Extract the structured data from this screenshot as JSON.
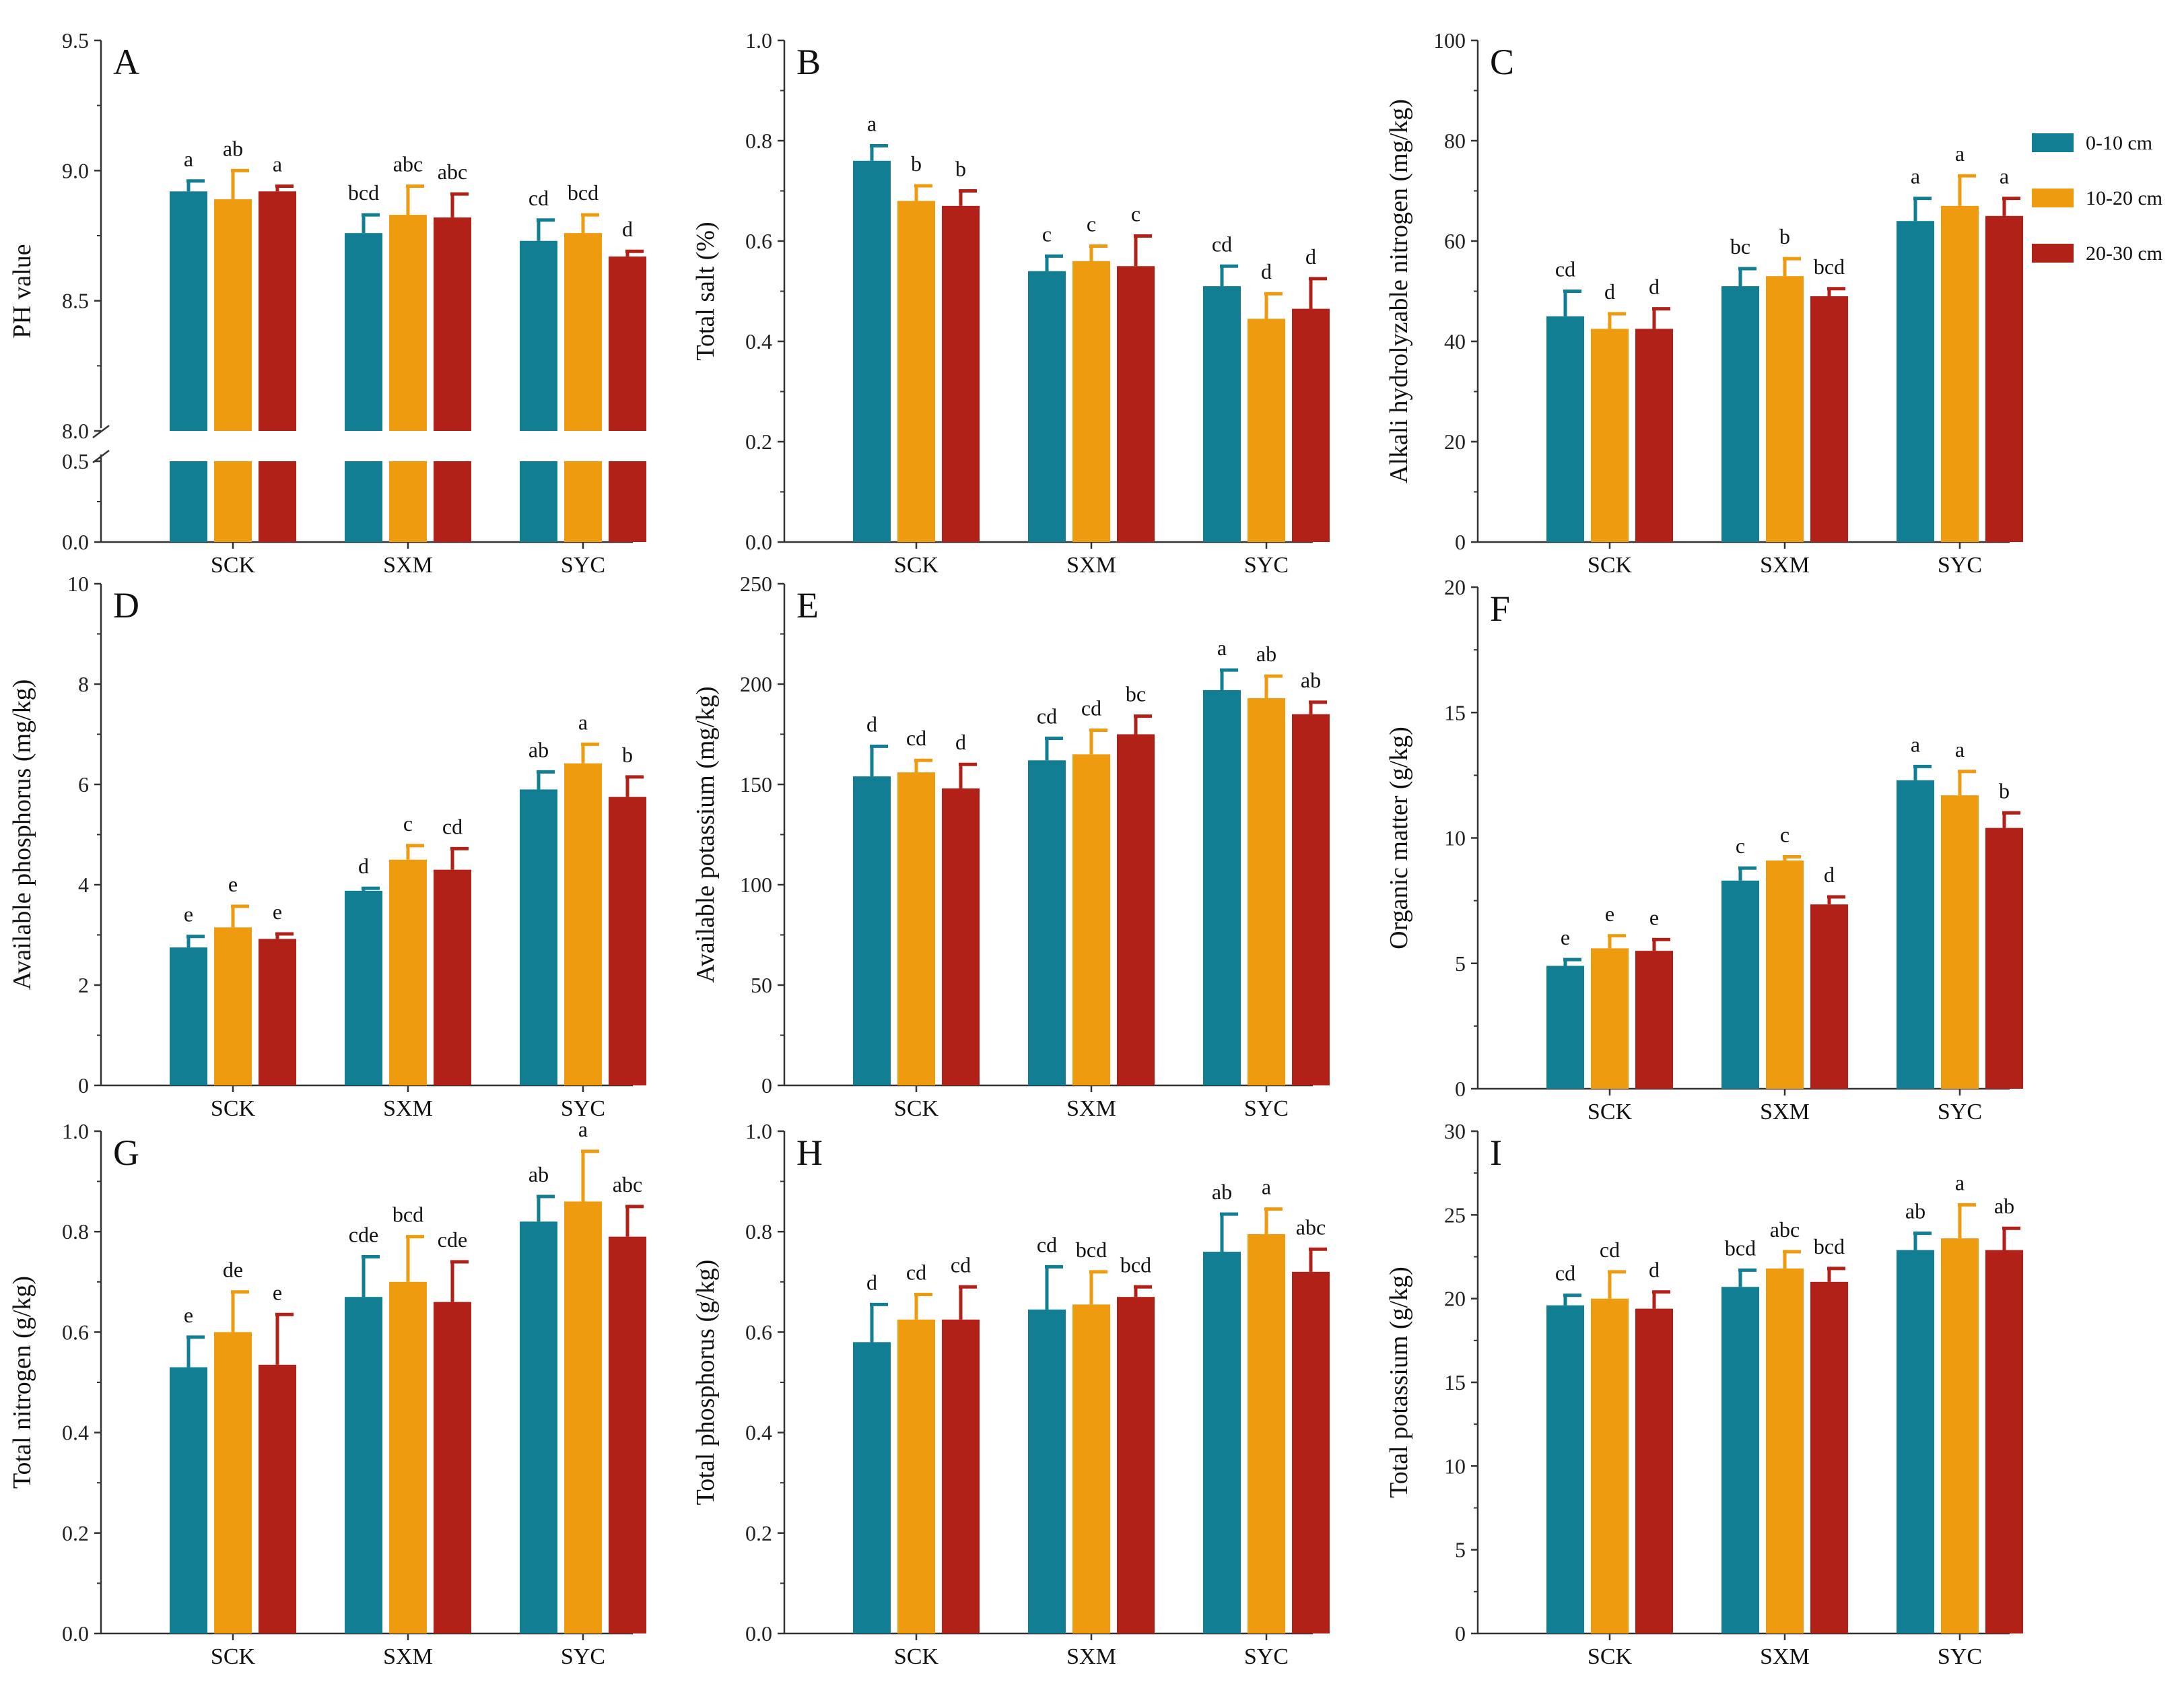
{
  "colors": {
    "s0": "#127e93",
    "s1": "#ee9b0f",
    "s2": "#b12118",
    "axis": "#333333"
  },
  "legend": [
    {
      "label": "0-10 cm",
      "color": "#127e93"
    },
    {
      "label": "10-20 cm",
      "color": "#ee9b0f"
    },
    {
      "label": "20-30 cm",
      "color": "#b12118"
    }
  ],
  "chart_data": [
    {
      "panel": "A",
      "type": "bar",
      "ylabel": "PH value",
      "categories": [
        "SCK",
        "SXM",
        "SYC"
      ],
      "broken_axis": true,
      "ylim_lower": [
        0,
        0.5
      ],
      "lower_ticks": [
        "0.0",
        "0.5"
      ],
      "ylim": [
        8.0,
        9.5
      ],
      "ticks": [
        "8.0",
        "8.5",
        "9.0",
        "9.5"
      ],
      "series": [
        {
          "name": "0-10 cm",
          "values": [
            8.92,
            8.76,
            8.73
          ],
          "errors": [
            0.04,
            0.07,
            0.08
          ],
          "labels": [
            "a",
            "bcd",
            "cd"
          ]
        },
        {
          "name": "10-20 cm",
          "values": [
            8.89,
            8.83,
            8.76
          ],
          "errors": [
            0.11,
            0.11,
            0.07
          ],
          "labels": [
            "ab",
            "abc",
            "bcd"
          ]
        },
        {
          "name": "20-30 cm",
          "values": [
            8.92,
            8.82,
            8.67
          ],
          "errors": [
            0.02,
            0.09,
            0.02
          ],
          "labels": [
            "a",
            "abc",
            "d"
          ]
        }
      ]
    },
    {
      "panel": "B",
      "type": "bar",
      "ylabel": "Total salt (%)",
      "categories": [
        "SCK",
        "SXM",
        "SYC"
      ],
      "ylim": [
        0,
        1.0
      ],
      "ticks": [
        "0.0",
        "0.2",
        "0.4",
        "0.6",
        "0.8",
        "1.0"
      ],
      "series": [
        {
          "name": "0-10 cm",
          "values": [
            0.76,
            0.54,
            0.51
          ],
          "errors": [
            0.03,
            0.03,
            0.04
          ],
          "labels": [
            "a",
            "c",
            "cd"
          ]
        },
        {
          "name": "10-20 cm",
          "values": [
            0.68,
            0.56,
            0.445
          ],
          "errors": [
            0.03,
            0.03,
            0.05
          ],
          "labels": [
            "b",
            "c",
            "d"
          ]
        },
        {
          "name": "20-30 cm",
          "values": [
            0.67,
            0.55,
            0.465
          ],
          "errors": [
            0.03,
            0.06,
            0.06
          ],
          "labels": [
            "b",
            "c",
            "d"
          ]
        }
      ]
    },
    {
      "panel": "C",
      "type": "bar",
      "ylabel": "Alkali hydrolyzable nitrogen (mg/kg)",
      "categories": [
        "SCK",
        "SXM",
        "SYC"
      ],
      "ylim": [
        0,
        100
      ],
      "ticks": [
        "0",
        "20",
        "40",
        "60",
        "80",
        "100"
      ],
      "series": [
        {
          "name": "0-10 cm",
          "values": [
            45,
            51,
            64
          ],
          "errors": [
            5,
            3.5,
            4.5
          ],
          "labels": [
            "cd",
            "bc",
            "a"
          ]
        },
        {
          "name": "10-20 cm",
          "values": [
            42.5,
            53,
            67
          ],
          "errors": [
            3,
            3.5,
            6
          ],
          "labels": [
            "d",
            "b",
            "a"
          ]
        },
        {
          "name": "20-30 cm",
          "values": [
            42.5,
            49,
            65
          ],
          "errors": [
            4,
            1.5,
            3.5
          ],
          "labels": [
            "d",
            "bcd",
            "a"
          ]
        }
      ]
    },
    {
      "panel": "D",
      "type": "bar",
      "ylabel": "Available phosphorus (mg/kg)",
      "categories": [
        "SCK",
        "SXM",
        "SYC"
      ],
      "ylim": [
        0,
        10
      ],
      "ticks": [
        "0",
        "2",
        "4",
        "6",
        "8",
        "10"
      ],
      "series": [
        {
          "name": "0-10 cm",
          "values": [
            2.75,
            3.88,
            5.9
          ],
          "errors": [
            0.22,
            0.05,
            0.35
          ],
          "labels": [
            "e",
            "d",
            "ab"
          ]
        },
        {
          "name": "10-20 cm",
          "values": [
            3.15,
            4.5,
            6.42
          ],
          "errors": [
            0.42,
            0.28,
            0.38
          ],
          "labels": [
            "e",
            "c",
            "a"
          ]
        },
        {
          "name": "20-30 cm",
          "values": [
            2.92,
            4.3,
            5.75
          ],
          "errors": [
            0.1,
            0.42,
            0.4
          ],
          "labels": [
            "e",
            "cd",
            "b"
          ]
        }
      ]
    },
    {
      "panel": "E",
      "type": "bar",
      "ylabel": "Available potassium (mg/kg)",
      "categories": [
        "SCK",
        "SXM",
        "SYC"
      ],
      "ylim": [
        0,
        250
      ],
      "ticks": [
        "0",
        "50",
        "100",
        "150",
        "200",
        "250"
      ],
      "series": [
        {
          "name": "0-10 cm",
          "values": [
            154,
            162,
            197
          ],
          "errors": [
            15,
            11,
            10
          ],
          "labels": [
            "d",
            "cd",
            "a"
          ]
        },
        {
          "name": "10-20 cm",
          "values": [
            156,
            165,
            193
          ],
          "errors": [
            6,
            12,
            11
          ],
          "labels": [
            "cd",
            "cd",
            "ab"
          ]
        },
        {
          "name": "20-30 cm",
          "values": [
            148,
            175,
            185
          ],
          "errors": [
            12,
            9,
            6
          ],
          "labels": [
            "d",
            "bc",
            "ab"
          ]
        }
      ]
    },
    {
      "panel": "F",
      "type": "bar",
      "ylabel": "Organic matter (g/kg)",
      "categories": [
        "SCK",
        "SXM",
        "SYC"
      ],
      "ylim": [
        0,
        20
      ],
      "ticks": [
        "0",
        "5",
        "10",
        "15",
        "20"
      ],
      "series": [
        {
          "name": "0-10 cm",
          "values": [
            4.9,
            8.3,
            12.3
          ],
          "errors": [
            0.25,
            0.5,
            0.55
          ],
          "labels": [
            "e",
            "c",
            "a"
          ]
        },
        {
          "name": "10-20 cm",
          "values": [
            5.6,
            9.1,
            11.7
          ],
          "errors": [
            0.5,
            0.15,
            0.95
          ],
          "labels": [
            "e",
            "c",
            "a"
          ]
        },
        {
          "name": "20-30 cm",
          "values": [
            5.5,
            7.35,
            10.4
          ],
          "errors": [
            0.45,
            0.3,
            0.6
          ],
          "labels": [
            "e",
            "d",
            "b"
          ]
        }
      ]
    },
    {
      "panel": "G",
      "type": "bar",
      "ylabel": "Total nitrogen (g/kg)",
      "categories": [
        "SCK",
        "SXM",
        "SYC"
      ],
      "ylim": [
        0,
        1.0
      ],
      "ticks": [
        "0.0",
        "0.2",
        "0.4",
        "0.6",
        "0.8",
        "1.0"
      ],
      "series": [
        {
          "name": "0-10 cm",
          "values": [
            0.53,
            0.67,
            0.82
          ],
          "errors": [
            0.06,
            0.08,
            0.05
          ],
          "labels": [
            "e",
            "cde",
            "ab"
          ]
        },
        {
          "name": "10-20 cm",
          "values": [
            0.6,
            0.7,
            0.86
          ],
          "errors": [
            0.08,
            0.09,
            0.1
          ],
          "labels": [
            "de",
            "bcd",
            "a"
          ]
        },
        {
          "name": "20-30 cm",
          "values": [
            0.535,
            0.66,
            0.79
          ],
          "errors": [
            0.1,
            0.08,
            0.06
          ],
          "labels": [
            "e",
            "cde",
            "abc"
          ]
        }
      ]
    },
    {
      "panel": "H",
      "type": "bar",
      "ylabel": "Total phosphorus (g/kg)",
      "categories": [
        "SCK",
        "SXM",
        "SYC"
      ],
      "ylim": [
        0,
        1.0
      ],
      "ticks": [
        "0.0",
        "0.2",
        "0.4",
        "0.6",
        "0.8",
        "1.0"
      ],
      "series": [
        {
          "name": "0-10 cm",
          "values": [
            0.58,
            0.645,
            0.76
          ],
          "errors": [
            0.075,
            0.085,
            0.075
          ],
          "labels": [
            "d",
            "cd",
            "ab"
          ]
        },
        {
          "name": "10-20 cm",
          "values": [
            0.625,
            0.655,
            0.795
          ],
          "errors": [
            0.05,
            0.065,
            0.05
          ],
          "labels": [
            "cd",
            "bcd",
            "a"
          ]
        },
        {
          "name": "20-30 cm",
          "values": [
            0.625,
            0.67,
            0.72
          ],
          "errors": [
            0.065,
            0.02,
            0.045
          ],
          "labels": [
            "cd",
            "bcd",
            "abc"
          ]
        }
      ]
    },
    {
      "panel": "I",
      "type": "bar",
      "ylabel": "Total potassium (g/kg)",
      "categories": [
        "SCK",
        "SXM",
        "SYC"
      ],
      "ylim": [
        0,
        30
      ],
      "ticks": [
        "0",
        "5",
        "10",
        "15",
        "20",
        "25",
        "30"
      ],
      "series": [
        {
          "name": "0-10 cm",
          "values": [
            19.6,
            20.7,
            22.9
          ],
          "errors": [
            0.6,
            1.0,
            1.0
          ],
          "labels": [
            "cd",
            "bcd",
            "ab"
          ]
        },
        {
          "name": "10-20 cm",
          "values": [
            20.0,
            21.8,
            23.6
          ],
          "errors": [
            1.6,
            1.0,
            2.0
          ],
          "labels": [
            "cd",
            "abc",
            "a"
          ]
        },
        {
          "name": "20-30 cm",
          "values": [
            19.4,
            21.0,
            22.9
          ],
          "errors": [
            1.0,
            0.8,
            1.3
          ],
          "labels": [
            "d",
            "bcd",
            "ab"
          ]
        }
      ]
    }
  ]
}
